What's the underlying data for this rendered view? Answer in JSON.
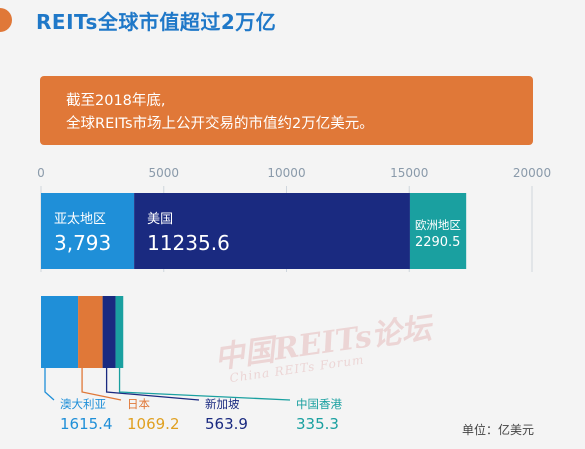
{
  "header": {
    "title": "REITs全球市值超过2万亿"
  },
  "banner": {
    "line1": "截至2018年底,",
    "line2": "全球REITs市场上公开交易的市值约2万亿美元。"
  },
  "watermark": {
    "cn": "中国REITs论坛",
    "en": "China REITs Forum"
  },
  "unit_label": "单位：亿美元",
  "colors": {
    "accent": "#e07838",
    "title": "#1f78c8",
    "asia_pacific": "#1f8fd8",
    "usa": "#1a2a80",
    "europe": "#1aa0a0",
    "australia": "#1f8fd8",
    "japan": "#e07838",
    "singapore": "#1a2a80",
    "hongkong": "#1aa0a0"
  },
  "chart_data": [
    {
      "type": "bar",
      "orientation": "horizontal",
      "stacked": true,
      "xlim": [
        0,
        20000
      ],
      "x_ticks": [
        0,
        5000,
        10000,
        15000,
        20000
      ],
      "grid": true,
      "series": [
        {
          "name": "亚太地区",
          "value": 3793,
          "label": "3,793"
        },
        {
          "name": "美国",
          "value": 11235.6,
          "label": "11235.6"
        },
        {
          "name": "欧洲地区",
          "value": 2290.5,
          "label": "2290.5"
        }
      ]
    },
    {
      "type": "bar",
      "orientation": "horizontal",
      "stacked": true,
      "series": [
        {
          "name": "澳大利亚",
          "value": 1615.4,
          "label": "1615.4"
        },
        {
          "name": "日本",
          "value": 1069.2,
          "label": "1069.2"
        },
        {
          "name": "新加坡",
          "value": 563.9,
          "label": "563.9"
        },
        {
          "name": "中国香港",
          "value": 335.3,
          "label": "335.3"
        }
      ]
    }
  ]
}
